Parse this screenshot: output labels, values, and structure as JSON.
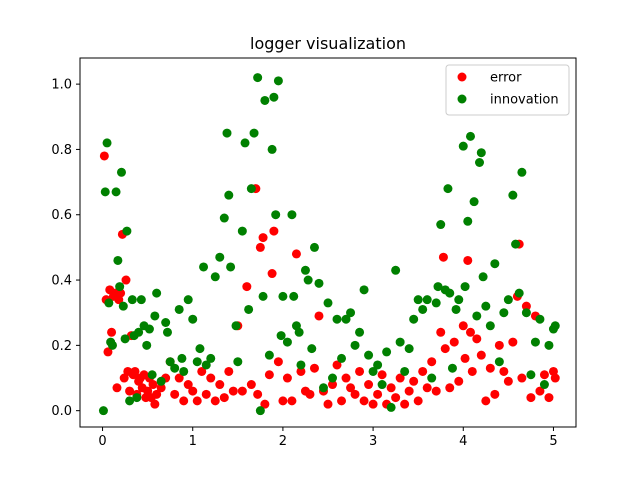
{
  "chart_data": {
    "type": "scatter",
    "title": "logger visualization",
    "xlabel": "",
    "ylabel": "",
    "xlim": [
      -0.25,
      5.25
    ],
    "ylim": [
      -0.05,
      1.08
    ],
    "xticks": [
      0,
      1,
      2,
      3,
      4,
      5
    ],
    "yticks": [
      0.0,
      0.2,
      0.4,
      0.6,
      0.8,
      1.0
    ],
    "xtick_labels": [
      "0",
      "1",
      "2",
      "3",
      "4",
      "5"
    ],
    "ytick_labels": [
      "0.0",
      "0.2",
      "0.4",
      "0.6",
      "0.8",
      "1.0"
    ],
    "grid": false,
    "legend": {
      "placement": "top-right"
    },
    "series": [
      {
        "name": "error",
        "color": "#ff0000",
        "points": [
          [
            0.02,
            0.78
          ],
          [
            0.04,
            0.34
          ],
          [
            0.06,
            0.18
          ],
          [
            0.08,
            0.37
          ],
          [
            0.1,
            0.24
          ],
          [
            0.12,
            0.35
          ],
          [
            0.14,
            0.36
          ],
          [
            0.16,
            0.07
          ],
          [
            0.18,
            0.34
          ],
          [
            0.2,
            0.36
          ],
          [
            0.22,
            0.54
          ],
          [
            0.24,
            0.1
          ],
          [
            0.26,
            0.4
          ],
          [
            0.28,
            0.12
          ],
          [
            0.3,
            0.06
          ],
          [
            0.32,
            0.23
          ],
          [
            0.34,
            0.11
          ],
          [
            0.36,
            0.12
          ],
          [
            0.38,
            0.05
          ],
          [
            0.4,
            0.09
          ],
          [
            0.42,
            0.1
          ],
          [
            0.44,
            0.07
          ],
          [
            0.46,
            0.11
          ],
          [
            0.48,
            0.04
          ],
          [
            0.5,
            0.06
          ],
          [
            0.52,
            0.1
          ],
          [
            0.54,
            0.04
          ],
          [
            0.56,
            0.08
          ],
          [
            0.58,
            0.02
          ],
          [
            0.6,
            0.05
          ],
          [
            0.65,
            0.07
          ],
          [
            0.7,
            0.1
          ],
          [
            0.75,
            0.15
          ],
          [
            0.8,
            0.05
          ],
          [
            0.85,
            0.1
          ],
          [
            0.9,
            0.03
          ],
          [
            0.95,
            0.08
          ],
          [
            1.0,
            0.06
          ],
          [
            1.05,
            0.03
          ],
          [
            1.1,
            0.12
          ],
          [
            1.15,
            0.05
          ],
          [
            1.2,
            0.1
          ],
          [
            1.25,
            0.03
          ],
          [
            1.3,
            0.08
          ],
          [
            1.35,
            0.04
          ],
          [
            1.4,
            0.12
          ],
          [
            1.45,
            0.06
          ],
          [
            1.5,
            0.26
          ],
          [
            1.55,
            0.06
          ],
          [
            1.6,
            0.38
          ],
          [
            1.65,
            0.08
          ],
          [
            1.7,
            0.68
          ],
          [
            1.72,
            0.05
          ],
          [
            1.75,
            0.5
          ],
          [
            1.78,
            0.53
          ],
          [
            1.8,
            0.02
          ],
          [
            1.85,
            0.11
          ],
          [
            1.88,
            0.42
          ],
          [
            1.9,
            0.55
          ],
          [
            1.95,
            0.15
          ],
          [
            2.0,
            0.03
          ],
          [
            2.05,
            0.1
          ],
          [
            2.1,
            0.03
          ],
          [
            2.15,
            0.48
          ],
          [
            2.2,
            0.12
          ],
          [
            2.25,
            0.06
          ],
          [
            2.3,
            0.05
          ],
          [
            2.35,
            0.13
          ],
          [
            2.4,
            0.29
          ],
          [
            2.45,
            0.06
          ],
          [
            2.5,
            0.02
          ],
          [
            2.55,
            0.08
          ],
          [
            2.6,
            0.14
          ],
          [
            2.65,
            0.03
          ],
          [
            2.7,
            0.1
          ],
          [
            2.75,
            0.07
          ],
          [
            2.8,
            0.05
          ],
          [
            2.85,
            0.12
          ],
          [
            2.9,
            0.03
          ],
          [
            2.95,
            0.08
          ],
          [
            3.0,
            0.02
          ],
          [
            3.05,
            0.05
          ],
          [
            3.1,
            0.11
          ],
          [
            3.15,
            0.02
          ],
          [
            3.2,
            0.07
          ],
          [
            3.25,
            0.04
          ],
          [
            3.3,
            0.1
          ],
          [
            3.35,
            0.02
          ],
          [
            3.4,
            0.06
          ],
          [
            3.45,
            0.09
          ],
          [
            3.5,
            0.03
          ],
          [
            3.55,
            0.12
          ],
          [
            3.6,
            0.07
          ],
          [
            3.65,
            0.15
          ],
          [
            3.7,
            0.06
          ],
          [
            3.75,
            0.24
          ],
          [
            3.78,
            0.47
          ],
          [
            3.8,
            0.19
          ],
          [
            3.85,
            0.07
          ],
          [
            3.9,
            0.21
          ],
          [
            3.95,
            0.09
          ],
          [
            4.0,
            0.26
          ],
          [
            4.02,
            0.16
          ],
          [
            4.05,
            0.46
          ],
          [
            4.08,
            0.24
          ],
          [
            4.1,
            0.12
          ],
          [
            4.15,
            0.22
          ],
          [
            4.2,
            0.17
          ],
          [
            4.25,
            0.03
          ],
          [
            4.3,
            0.13
          ],
          [
            4.35,
            0.05
          ],
          [
            4.4,
            0.2
          ],
          [
            4.45,
            0.12
          ],
          [
            4.5,
            0.09
          ],
          [
            4.55,
            0.21
          ],
          [
            4.6,
            0.35
          ],
          [
            4.62,
            0.51
          ],
          [
            4.65,
            0.1
          ],
          [
            4.7,
            0.32
          ],
          [
            4.75,
            0.04
          ],
          [
            4.8,
            0.29
          ],
          [
            4.85,
            0.06
          ],
          [
            4.9,
            0.11
          ],
          [
            4.95,
            0.04
          ],
          [
            5.0,
            0.12
          ],
          [
            5.02,
            0.1
          ]
        ]
      },
      {
        "name": "innovation",
        "color": "#008000",
        "points": [
          [
            0.01,
            0.0
          ],
          [
            0.03,
            0.67
          ],
          [
            0.05,
            0.82
          ],
          [
            0.07,
            0.33
          ],
          [
            0.09,
            0.21
          ],
          [
            0.11,
            0.2
          ],
          [
            0.15,
            0.67
          ],
          [
            0.17,
            0.46
          ],
          [
            0.19,
            0.38
          ],
          [
            0.21,
            0.73
          ],
          [
            0.23,
            0.32
          ],
          [
            0.25,
            0.22
          ],
          [
            0.27,
            0.55
          ],
          [
            0.3,
            0.03
          ],
          [
            0.33,
            0.34
          ],
          [
            0.35,
            0.23
          ],
          [
            0.38,
            0.04
          ],
          [
            0.4,
            0.24
          ],
          [
            0.43,
            0.34
          ],
          [
            0.46,
            0.26
          ],
          [
            0.49,
            0.2
          ],
          [
            0.52,
            0.25
          ],
          [
            0.55,
            0.11
          ],
          [
            0.58,
            0.29
          ],
          [
            0.6,
            0.36
          ],
          [
            0.65,
            0.09
          ],
          [
            0.7,
            0.27
          ],
          [
            0.72,
            0.24
          ],
          [
            0.75,
            0.15
          ],
          [
            0.8,
            0.13
          ],
          [
            0.85,
            0.31
          ],
          [
            0.88,
            0.16
          ],
          [
            0.9,
            0.12
          ],
          [
            0.95,
            0.34
          ],
          [
            1.0,
            0.28
          ],
          [
            1.05,
            0.15
          ],
          [
            1.08,
            0.19
          ],
          [
            1.12,
            0.44
          ],
          [
            1.15,
            0.14
          ],
          [
            1.2,
            0.16
          ],
          [
            1.25,
            0.41
          ],
          [
            1.3,
            0.47
          ],
          [
            1.35,
            0.59
          ],
          [
            1.38,
            0.85
          ],
          [
            1.4,
            0.66
          ],
          [
            1.42,
            0.44
          ],
          [
            1.48,
            0.26
          ],
          [
            1.5,
            0.15
          ],
          [
            1.55,
            0.55
          ],
          [
            1.58,
            0.82
          ],
          [
            1.62,
            0.31
          ],
          [
            1.65,
            0.68
          ],
          [
            1.68,
            0.85
          ],
          [
            1.72,
            1.02
          ],
          [
            1.75,
            0.0
          ],
          [
            1.78,
            0.35
          ],
          [
            1.8,
            0.95
          ],
          [
            1.85,
            0.17
          ],
          [
            1.88,
            0.8
          ],
          [
            1.9,
            0.96
          ],
          [
            1.92,
            0.6
          ],
          [
            1.95,
            1.01
          ],
          [
            1.98,
            0.23
          ],
          [
            2.0,
            0.35
          ],
          [
            2.05,
            0.21
          ],
          [
            2.1,
            0.6
          ],
          [
            2.12,
            0.35
          ],
          [
            2.15,
            0.26
          ],
          [
            2.18,
            0.24
          ],
          [
            2.2,
            0.14
          ],
          [
            2.25,
            0.43
          ],
          [
            2.28,
            0.4
          ],
          [
            2.32,
            0.19
          ],
          [
            2.35,
            0.5
          ],
          [
            2.4,
            0.39
          ],
          [
            2.45,
            0.07
          ],
          [
            2.5,
            0.33
          ],
          [
            2.55,
            0.1
          ],
          [
            2.6,
            0.28
          ],
          [
            2.65,
            0.16
          ],
          [
            2.7,
            0.28
          ],
          [
            2.75,
            0.3
          ],
          [
            2.8,
            0.2
          ],
          [
            2.85,
            0.24
          ],
          [
            2.9,
            0.37
          ],
          [
            2.95,
            0.17
          ],
          [
            3.0,
            0.12
          ],
          [
            3.05,
            0.14
          ],
          [
            3.1,
            0.08
          ],
          [
            3.15,
            0.18
          ],
          [
            3.2,
            0.01
          ],
          [
            3.25,
            0.43
          ],
          [
            3.3,
            0.21
          ],
          [
            3.35,
            0.12
          ],
          [
            3.4,
            0.19
          ],
          [
            3.45,
            0.28
          ],
          [
            3.5,
            0.34
          ],
          [
            3.55,
            0.31
          ],
          [
            3.6,
            0.34
          ],
          [
            3.65,
            0.1
          ],
          [
            3.7,
            0.33
          ],
          [
            3.72,
            0.38
          ],
          [
            3.75,
            0.57
          ],
          [
            3.8,
            0.37
          ],
          [
            3.83,
            0.68
          ],
          [
            3.85,
            0.36
          ],
          [
            3.88,
            0.13
          ],
          [
            3.92,
            0.31
          ],
          [
            3.95,
            0.34
          ],
          [
            4.0,
            0.81
          ],
          [
            4.02,
            0.38
          ],
          [
            4.05,
            0.58
          ],
          [
            4.08,
            0.84
          ],
          [
            4.12,
            0.64
          ],
          [
            4.15,
            0.29
          ],
          [
            4.18,
            0.76
          ],
          [
            4.2,
            0.79
          ],
          [
            4.22,
            0.41
          ],
          [
            4.25,
            0.32
          ],
          [
            4.3,
            0.26
          ],
          [
            4.35,
            0.45
          ],
          [
            4.4,
            0.15
          ],
          [
            4.45,
            0.3
          ],
          [
            4.5,
            0.34
          ],
          [
            4.55,
            0.66
          ],
          [
            4.58,
            0.51
          ],
          [
            4.62,
            0.36
          ],
          [
            4.65,
            0.73
          ],
          [
            4.7,
            0.3
          ],
          [
            4.75,
            0.11
          ],
          [
            4.8,
            0.21
          ],
          [
            4.85,
            0.28
          ],
          [
            4.9,
            0.08
          ],
          [
            4.95,
            0.2
          ],
          [
            5.0,
            0.25
          ],
          [
            5.02,
            0.26
          ]
        ]
      }
    ]
  }
}
